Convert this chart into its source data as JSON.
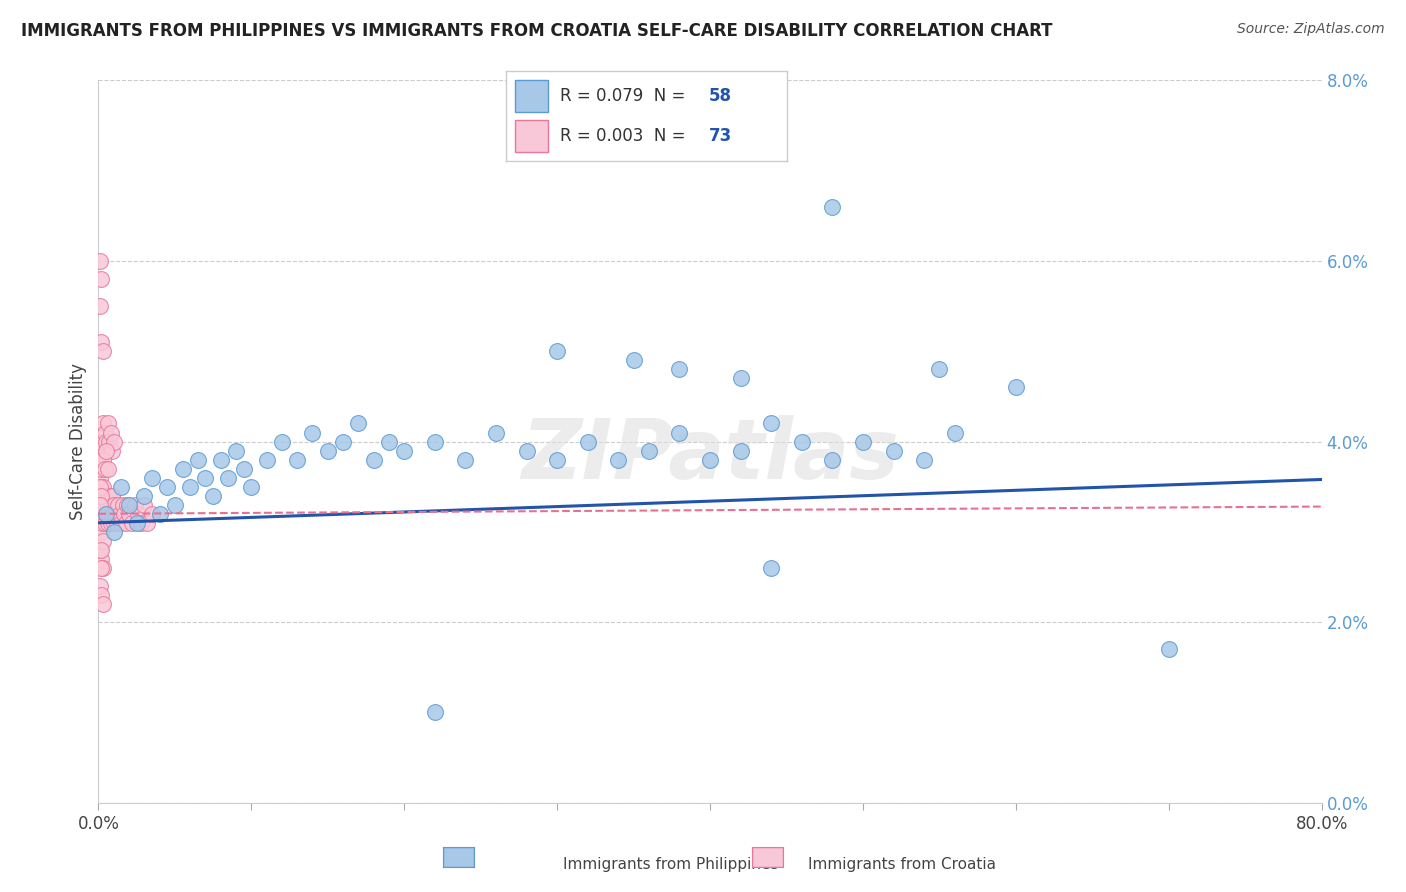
{
  "title": "IMMIGRANTS FROM PHILIPPINES VS IMMIGRANTS FROM CROATIA SELF-CARE DISABILITY CORRELATION CHART",
  "source": "Source: ZipAtlas.com",
  "ylabel": "Self-Care Disability",
  "xlim": [
    0.0,
    0.8
  ],
  "ylim": [
    0.0,
    0.08
  ],
  "xticks": [
    0.0,
    0.1,
    0.2,
    0.3,
    0.4,
    0.5,
    0.6,
    0.7,
    0.8
  ],
  "xticklabels_shown": [
    "0.0%",
    "",
    "",
    "",
    "",
    "",
    "",
    "",
    "80.0%"
  ],
  "yticks": [
    0.0,
    0.02,
    0.04,
    0.06,
    0.08
  ],
  "yticklabels": [
    "0.0%",
    "2.0%",
    "4.0%",
    "6.0%",
    "8.0%"
  ],
  "philippines_color": "#a8c8e8",
  "philippines_edge": "#5b9bd5",
  "croatia_color": "#f9c8d8",
  "croatia_edge": "#e8789a",
  "trendline_philippines_color": "#2255aa",
  "trendline_croatia_color": "#e87090",
  "legend_R_philippines": "R = 0.079",
  "legend_N_philippines": "N = 58",
  "legend_R_croatia": "R = 0.003",
  "legend_N_croatia": "N = 73",
  "watermark": "ZIPatlas",
  "philippines_x": [
    0.005,
    0.01,
    0.015,
    0.02,
    0.025,
    0.03,
    0.035,
    0.04,
    0.045,
    0.05,
    0.055,
    0.06,
    0.065,
    0.07,
    0.075,
    0.08,
    0.085,
    0.09,
    0.095,
    0.1,
    0.11,
    0.12,
    0.13,
    0.14,
    0.15,
    0.16,
    0.17,
    0.18,
    0.19,
    0.2,
    0.22,
    0.24,
    0.26,
    0.28,
    0.3,
    0.32,
    0.34,
    0.36,
    0.38,
    0.4,
    0.42,
    0.44,
    0.46,
    0.48,
    0.5,
    0.52,
    0.54,
    0.56,
    0.38,
    0.42,
    0.3,
    0.35,
    0.48,
    0.55,
    0.6,
    0.7,
    0.44,
    0.22
  ],
  "philippines_y": [
    0.032,
    0.03,
    0.035,
    0.033,
    0.031,
    0.034,
    0.036,
    0.032,
    0.035,
    0.033,
    0.037,
    0.035,
    0.038,
    0.036,
    0.034,
    0.038,
    0.036,
    0.039,
    0.037,
    0.035,
    0.038,
    0.04,
    0.038,
    0.041,
    0.039,
    0.04,
    0.042,
    0.038,
    0.04,
    0.039,
    0.04,
    0.038,
    0.041,
    0.039,
    0.038,
    0.04,
    0.038,
    0.039,
    0.041,
    0.038,
    0.039,
    0.042,
    0.04,
    0.038,
    0.04,
    0.039,
    0.038,
    0.041,
    0.048,
    0.047,
    0.05,
    0.049,
    0.066,
    0.048,
    0.046,
    0.017,
    0.026,
    0.01
  ],
  "croatia_x": [
    0.0005,
    0.001,
    0.001,
    0.0015,
    0.002,
    0.002,
    0.0025,
    0.003,
    0.003,
    0.004,
    0.004,
    0.005,
    0.005,
    0.006,
    0.006,
    0.007,
    0.007,
    0.008,
    0.008,
    0.009,
    0.009,
    0.01,
    0.01,
    0.011,
    0.012,
    0.013,
    0.014,
    0.015,
    0.016,
    0.017,
    0.018,
    0.019,
    0.02,
    0.022,
    0.024,
    0.026,
    0.028,
    0.03,
    0.032,
    0.035,
    0.001,
    0.002,
    0.003,
    0.004,
    0.005,
    0.006,
    0.007,
    0.008,
    0.009,
    0.01,
    0.001,
    0.002,
    0.003,
    0.004,
    0.005,
    0.006,
    0.002,
    0.003,
    0.001,
    0.002,
    0.001,
    0.002,
    0.003,
    0.001,
    0.002,
    0.001,
    0.002,
    0.001,
    0.003,
    0.002,
    0.001,
    0.002,
    0.003
  ],
  "croatia_y": [
    0.035,
    0.032,
    0.036,
    0.03,
    0.034,
    0.033,
    0.031,
    0.035,
    0.032,
    0.033,
    0.031,
    0.034,
    0.032,
    0.033,
    0.031,
    0.034,
    0.032,
    0.031,
    0.033,
    0.032,
    0.034,
    0.031,
    0.033,
    0.032,
    0.031,
    0.033,
    0.032,
    0.031,
    0.033,
    0.032,
    0.031,
    0.033,
    0.032,
    0.031,
    0.033,
    0.032,
    0.031,
    0.033,
    0.031,
    0.032,
    0.039,
    0.04,
    0.042,
    0.041,
    0.04,
    0.042,
    0.04,
    0.041,
    0.039,
    0.04,
    0.038,
    0.037,
    0.038,
    0.037,
    0.039,
    0.037,
    0.027,
    0.026,
    0.028,
    0.026,
    0.055,
    0.051,
    0.05,
    0.06,
    0.058,
    0.035,
    0.034,
    0.033,
    0.029,
    0.028,
    0.024,
    0.023,
    0.022
  ]
}
